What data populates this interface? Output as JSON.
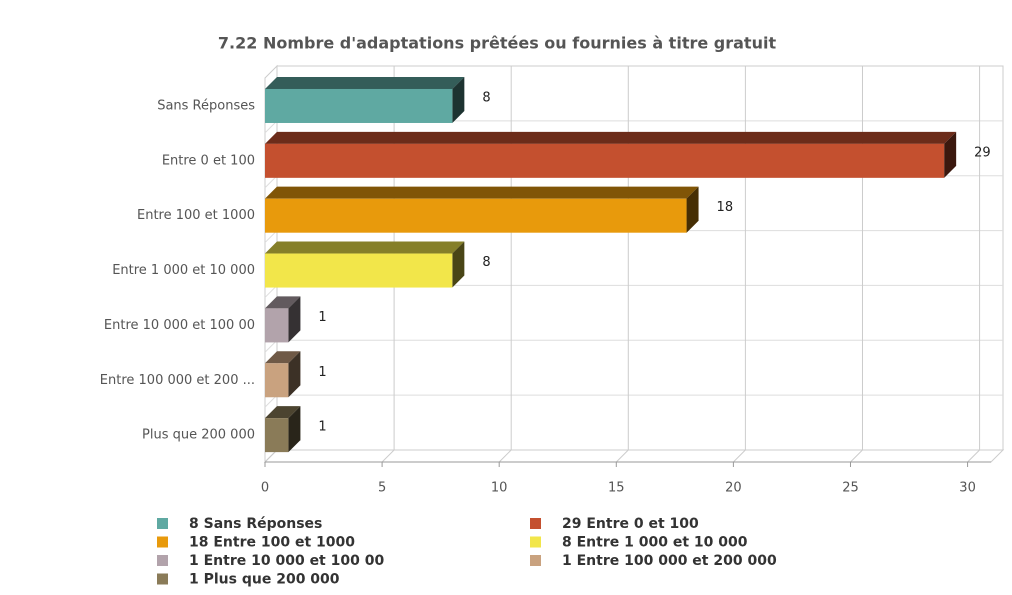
{
  "chart_data": {
    "type": "bar3d",
    "orientation": "horizontal",
    "title": "7.22 Nombre d'adaptations prêtées ou fournies à titre gratuit",
    "categories": [
      "Sans Réponses",
      "Entre 0 et 100",
      "Entre 100 et 1000",
      "Entre 1 000 et 10 000",
      "Entre 10 000 et 100 00",
      "Entre 100 000 et 200 ...",
      "Plus que 200 000"
    ],
    "values": [
      8,
      29,
      18,
      8,
      1,
      1,
      1
    ],
    "colors": [
      "#5fa9a2",
      "#c4502f",
      "#e89a0c",
      "#f2e64a",
      "#b2a3ab",
      "#c9a27f",
      "#8a7b58"
    ],
    "legend": [
      "8 Sans Réponses",
      "29 Entre 0 et 100",
      "18 Entre 100 et 1000",
      "8 Entre 1 000 et 10 000",
      "1 Entre 10 000 et 100 00",
      "1 Entre 100 000 et 200 000",
      "1 Plus que 200 000"
    ],
    "xlim": [
      0,
      31
    ],
    "xticks": [
      0,
      5,
      10,
      15,
      20,
      25,
      30
    ],
    "grid": true
  }
}
